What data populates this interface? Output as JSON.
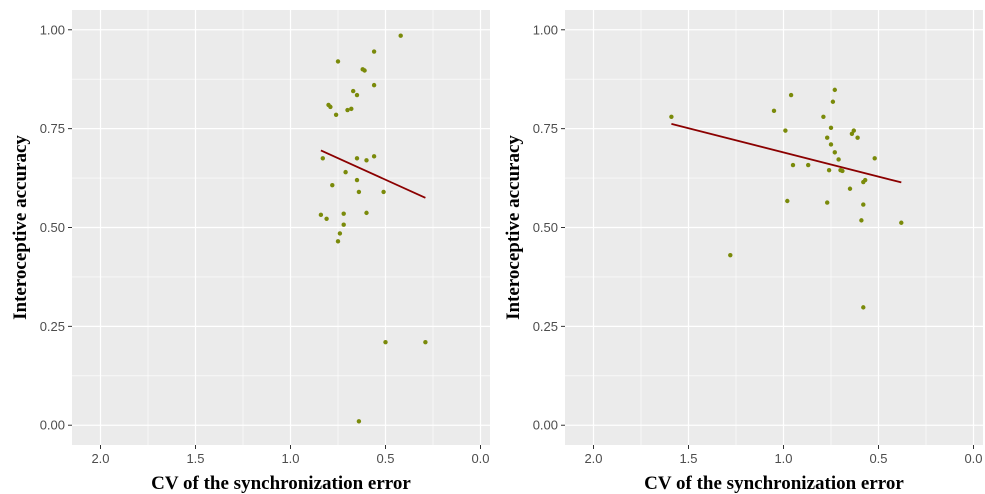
{
  "chart_data": [
    {
      "type": "scatter",
      "xlabel": "CV of the synchronization error",
      "ylabel": "Interoceptive accuracy",
      "x_reversed": true,
      "xlim": [
        2.15,
        -0.05
      ],
      "ylim": [
        -0.05,
        1.05
      ],
      "x_ticks": [
        2.0,
        1.5,
        1.0,
        0.5,
        0.0
      ],
      "x_tick_labels": [
        "2.0",
        "1.5",
        "1.0",
        "0.5",
        "0.0"
      ],
      "y_ticks": [
        0.0,
        0.25,
        0.5,
        0.75,
        1.0
      ],
      "y_tick_labels": [
        "0.00",
        "0.25",
        "0.50",
        "0.75",
        "1.00"
      ],
      "grid": true,
      "colors": {
        "panel_background": "#ebebeb",
        "grid": "#ffffff",
        "points": "#7a8a0a",
        "fit_line": "#8b0000"
      },
      "points": [
        {
          "x": 0.42,
          "y": 0.985
        },
        {
          "x": 0.56,
          "y": 0.945
        },
        {
          "x": 0.75,
          "y": 0.92
        },
        {
          "x": 0.62,
          "y": 0.9
        },
        {
          "x": 0.61,
          "y": 0.897
        },
        {
          "x": 0.56,
          "y": 0.86
        },
        {
          "x": 0.67,
          "y": 0.845
        },
        {
          "x": 0.65,
          "y": 0.835
        },
        {
          "x": 0.8,
          "y": 0.81
        },
        {
          "x": 0.79,
          "y": 0.805
        },
        {
          "x": 0.68,
          "y": 0.8
        },
        {
          "x": 0.7,
          "y": 0.797
        },
        {
          "x": 0.76,
          "y": 0.785
        },
        {
          "x": 0.83,
          "y": 0.675
        },
        {
          "x": 0.65,
          "y": 0.675
        },
        {
          "x": 0.56,
          "y": 0.68
        },
        {
          "x": 0.6,
          "y": 0.67
        },
        {
          "x": 0.71,
          "y": 0.64
        },
        {
          "x": 0.65,
          "y": 0.62
        },
        {
          "x": 0.78,
          "y": 0.607
        },
        {
          "x": 0.64,
          "y": 0.59
        },
        {
          "x": 0.51,
          "y": 0.59
        },
        {
          "x": 0.6,
          "y": 0.537
        },
        {
          "x": 0.72,
          "y": 0.535
        },
        {
          "x": 0.84,
          "y": 0.532
        },
        {
          "x": 0.81,
          "y": 0.522
        },
        {
          "x": 0.72,
          "y": 0.507
        },
        {
          "x": 0.74,
          "y": 0.485
        },
        {
          "x": 0.75,
          "y": 0.465
        },
        {
          "x": 0.5,
          "y": 0.21
        },
        {
          "x": 0.29,
          "y": 0.21
        },
        {
          "x": 0.64,
          "y": 0.01
        }
      ],
      "fit_line": [
        {
          "x": 0.84,
          "y": 0.695
        },
        {
          "x": 0.29,
          "y": 0.575
        }
      ]
    },
    {
      "type": "scatter",
      "xlabel": "CV of the synchronization error",
      "ylabel": "Interoceptive accuracy",
      "x_reversed": true,
      "xlim": [
        2.15,
        -0.05
      ],
      "ylim": [
        -0.05,
        1.05
      ],
      "x_ticks": [
        2.0,
        1.5,
        1.0,
        0.5,
        0.0
      ],
      "x_tick_labels": [
        "2.0",
        "1.5",
        "1.0",
        "0.5",
        "0.0"
      ],
      "y_ticks": [
        0.0,
        0.25,
        0.5,
        0.75,
        1.0
      ],
      "y_tick_labels": [
        "0.00",
        "0.25",
        "0.50",
        "0.75",
        "1.00"
      ],
      "grid": true,
      "colors": {
        "panel_background": "#ebebeb",
        "grid": "#ffffff",
        "points": "#7a8a0a",
        "fit_line": "#8b0000"
      },
      "points": [
        {
          "x": 1.59,
          "y": 0.78
        },
        {
          "x": 1.05,
          "y": 0.795
        },
        {
          "x": 0.96,
          "y": 0.835
        },
        {
          "x": 0.99,
          "y": 0.745
        },
        {
          "x": 0.73,
          "y": 0.848
        },
        {
          "x": 0.74,
          "y": 0.818
        },
        {
          "x": 0.79,
          "y": 0.78
        },
        {
          "x": 0.75,
          "y": 0.752
        },
        {
          "x": 0.63,
          "y": 0.745
        },
        {
          "x": 0.64,
          "y": 0.737
        },
        {
          "x": 0.61,
          "y": 0.727
        },
        {
          "x": 0.77,
          "y": 0.727
        },
        {
          "x": 0.75,
          "y": 0.71
        },
        {
          "x": 0.73,
          "y": 0.69
        },
        {
          "x": 0.71,
          "y": 0.672
        },
        {
          "x": 0.52,
          "y": 0.675
        },
        {
          "x": 0.95,
          "y": 0.658
        },
        {
          "x": 0.87,
          "y": 0.658
        },
        {
          "x": 0.76,
          "y": 0.645
        },
        {
          "x": 0.7,
          "y": 0.645
        },
        {
          "x": 0.69,
          "y": 0.643
        },
        {
          "x": 0.57,
          "y": 0.62
        },
        {
          "x": 0.58,
          "y": 0.615
        },
        {
          "x": 0.65,
          "y": 0.598
        },
        {
          "x": 0.98,
          "y": 0.567
        },
        {
          "x": 0.77,
          "y": 0.563
        },
        {
          "x": 0.58,
          "y": 0.558
        },
        {
          "x": 0.59,
          "y": 0.518
        },
        {
          "x": 0.38,
          "y": 0.512
        },
        {
          "x": 1.28,
          "y": 0.43
        },
        {
          "x": 0.58,
          "y": 0.298
        }
      ],
      "fit_line": [
        {
          "x": 1.59,
          "y": 0.762
        },
        {
          "x": 0.38,
          "y": 0.614
        }
      ]
    }
  ]
}
